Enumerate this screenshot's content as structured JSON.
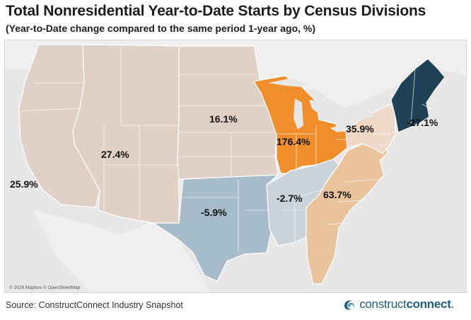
{
  "title": "Total Nonresidential Year-to-Date Starts by Census Divisions",
  "subtitle": "(Year-to-Date change compared to the same period 1-year ago, %)",
  "source": "Source: ConstructConnect Industry Snapshot",
  "attribution": "© 2026 Mapbox © OpenStreetMap",
  "brand": {
    "light": "construct",
    "bold": "connect",
    "suffix": "."
  },
  "regions": [
    {
      "id": "pacific",
      "value_label": "25.9%",
      "color": "#e0d0c5"
    },
    {
      "id": "mountain",
      "value_label": "27.4%",
      "color": "#e0d0c5"
    },
    {
      "id": "west-north-central",
      "value_label": "16.1%",
      "color": "#e0d0c5"
    },
    {
      "id": "west-south-central",
      "value_label": "-5.9%",
      "color": "#a7bccb"
    },
    {
      "id": "east-north-central",
      "value_label": "176.4%",
      "color": "#ef8e2b"
    },
    {
      "id": "east-south-central",
      "value_label": "-2.7%",
      "color": "#c8d3da"
    },
    {
      "id": "south-atlantic",
      "value_label": "63.7%",
      "color": "#e9c39c"
    },
    {
      "id": "middle-atlantic",
      "value_label": "35.9%",
      "color": "#eed9c9"
    },
    {
      "id": "new-england",
      "value_label": "-27.1%",
      "color": "#1f4257"
    }
  ],
  "icons": {
    "brand": "connect-swirl-icon"
  }
}
